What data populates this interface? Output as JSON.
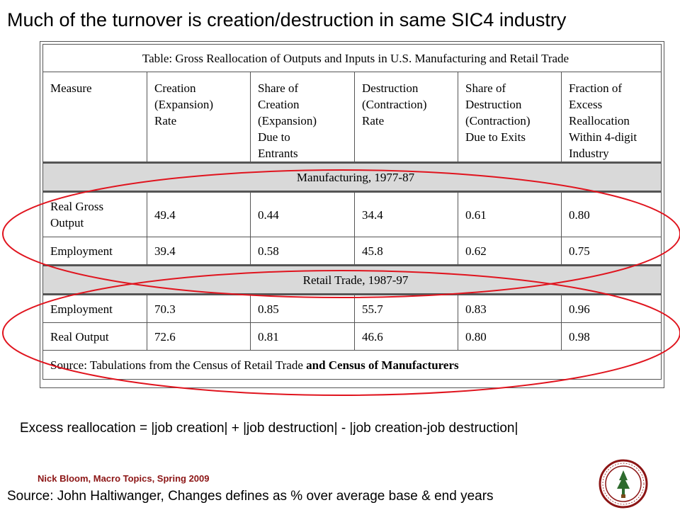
{
  "slide": {
    "title": "Much of the turnover is creation/destruction in same SIC4 industry",
    "formula": "Excess reallocation = |job creation| + |job destruction| - |job creation-job destruction|",
    "author": "Nick Bloom, Macro Topics, Spring 2009",
    "source": "Source: John Haltiwanger, Changes defines as % over average base & end years"
  },
  "table": {
    "caption": "Table:  Gross Reallocation of Outputs and Inputs in U.S. Manufacturing and Retail Trade",
    "headers": [
      "Measure",
      "Creation\n(Expansion)\nRate",
      "Share of\nCreation\n(Expansion)\nDue to\nEntrants",
      "Destruction\n(Contraction)\nRate",
      "Share of\nDestruction\n(Contraction)\nDue to Exits",
      "Fraction of\nExcess\nReallocation\nWithin 4-digit\nIndustry"
    ],
    "sections": [
      {
        "label": "Manufacturing, 1977-87",
        "rows": [
          {
            "cells": [
              "Real Gross\nOutput",
              "49.4",
              "0.44",
              "34.4",
              "0.61",
              "0.80"
            ]
          },
          {
            "cells": [
              "Employment",
              "39.4",
              "0.58",
              "45.8",
              "0.62",
              "0.75"
            ]
          }
        ]
      },
      {
        "label": "Retail Trade, 1987-97",
        "rows": [
          {
            "cells": [
              "Employment",
              "70.3",
              "0.85",
              "55.7",
              "0.83",
              "0.96"
            ]
          },
          {
            "cells": [
              "Real Output",
              "72.6",
              "0.81",
              "46.6",
              "0.80",
              "0.98"
            ]
          }
        ]
      }
    ],
    "source_plain": "Source: Tabulations from the Census of Retail Trade ",
    "source_bold": "and Census of Manufacturers"
  },
  "colors": {
    "highlight_ellipse": "#e0141e",
    "author_text": "#8c1515",
    "section_fill": "#d9d9d9"
  }
}
